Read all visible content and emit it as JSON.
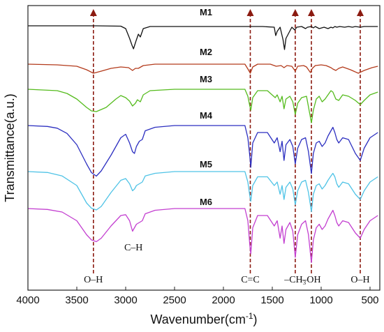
{
  "chart_data": {
    "type": "line",
    "xlabel": "Wavenumber(cm",
    "xlabel_sup": "-1",
    "xlabel_close": ")",
    "ylabel": "Transmittance(a.u.)",
    "xlim": [
      4000,
      400
    ],
    "x_direction": "reversed",
    "x_ticks": [
      4000,
      3500,
      3000,
      2500,
      2000,
      1500,
      1000,
      500
    ],
    "y_ticks": "none",
    "grid": false,
    "series": [
      {
        "name": "M1",
        "color": "#111111",
        "x": [
          4000,
          3300,
          3050,
          3000,
          2960,
          2935,
          2920,
          2895,
          2870,
          2850,
          2820,
          2750,
          2000,
          1600,
          1480,
          1465,
          1450,
          1420,
          1390,
          1375,
          1360,
          1300,
          1270,
          1250,
          1200,
          1160,
          1140,
          1100,
          1080,
          1060,
          1020,
          970,
          930,
          900,
          880,
          860,
          840,
          810,
          760,
          720,
          680,
          650,
          600,
          560,
          500,
          420
        ],
        "y": [
          0,
          0,
          -0.5,
          -4,
          -18,
          -28,
          -33,
          -22,
          -12,
          -16,
          -4,
          -1,
          -1,
          -1,
          -2,
          -14,
          -8,
          -2,
          -20,
          -34,
          -18,
          -2,
          -6,
          -2,
          -1,
          -4,
          -2,
          -1,
          -3,
          -1,
          -4,
          -2,
          -4,
          -2,
          -3,
          -1,
          -2,
          -1,
          -2,
          -1,
          -2,
          -1,
          -2,
          -1,
          -1,
          -1
        ]
      },
      {
        "name": "M2",
        "color": "#b33a1b",
        "x": [
          4000,
          3700,
          3500,
          3400,
          3330,
          3250,
          3150,
          3050,
          2970,
          2930,
          2900,
          2870,
          2820,
          2700,
          2000,
          1780,
          1745,
          1725,
          1700,
          1650,
          1520,
          1460,
          1410,
          1380,
          1350,
          1300,
          1265,
          1240,
          1180,
          1150,
          1110,
          1090,
          1060,
          1000,
          950,
          900,
          880,
          850,
          820,
          780,
          700,
          620,
          560,
          480,
          420
        ],
        "y": [
          0,
          -1,
          -3,
          -8,
          -13,
          -10,
          -6,
          -4,
          -5,
          -9,
          -6,
          -6,
          -2,
          0,
          0,
          0,
          -8,
          -13,
          -4,
          0,
          0,
          -3,
          -2,
          -5,
          -2,
          -3,
          -10,
          -3,
          -2,
          -4,
          -12,
          -6,
          -2,
          -1,
          -2,
          -5,
          -7,
          -9,
          -6,
          -4,
          -8,
          -13,
          -9,
          -5,
          -3
        ]
      },
      {
        "name": "M3",
        "color": "#55bb1d",
        "x": [
          4000,
          3700,
          3600,
          3500,
          3400,
          3350,
          3300,
          3200,
          3100,
          3050,
          3000,
          2960,
          2930,
          2900,
          2880,
          2850,
          2820,
          2750,
          2500,
          2000,
          1780,
          1750,
          1730,
          1720,
          1700,
          1650,
          1550,
          1470,
          1450,
          1420,
          1400,
          1380,
          1360,
          1320,
          1290,
          1265,
          1240,
          1200,
          1150,
          1130,
          1100,
          1080,
          1050,
          1020,
          990,
          960,
          920,
          900,
          880,
          850,
          820,
          780,
          720,
          650,
          600,
          560,
          500,
          420
        ],
        "y": [
          0,
          -2,
          -6,
          -14,
          -26,
          -31,
          -32,
          -26,
          -14,
          -9,
          -12,
          -17,
          -24,
          -20,
          -15,
          -18,
          -8,
          -2,
          0,
          0,
          0,
          -10,
          -24,
          -30,
          -12,
          -2,
          -2,
          -12,
          -8,
          -18,
          -10,
          -28,
          -14,
          -10,
          -18,
          -36,
          -20,
          -12,
          -10,
          -25,
          -48,
          -30,
          -14,
          -10,
          -18,
          -14,
          -6,
          -2,
          -4,
          -14,
          -16,
          -8,
          -10,
          -16,
          -22,
          -16,
          -8,
          -4
        ]
      },
      {
        "name": "M4",
        "color": "#2c2fc0",
        "x": [
          4000,
          3800,
          3700,
          3600,
          3500,
          3400,
          3350,
          3300,
          3250,
          3150,
          3050,
          3000,
          2960,
          2930,
          2910,
          2890,
          2860,
          2830,
          2800,
          2700,
          2500,
          2000,
          1780,
          1750,
          1730,
          1720,
          1700,
          1650,
          1550,
          1480,
          1450,
          1420,
          1400,
          1380,
          1360,
          1320,
          1290,
          1265,
          1240,
          1200,
          1160,
          1130,
          1100,
          1080,
          1050,
          1020,
          990,
          960,
          930,
          900,
          880,
          860,
          840,
          820,
          780,
          720,
          650,
          600,
          560,
          500,
          420
        ],
        "y": [
          0,
          -1,
          -3,
          -9,
          -22,
          -44,
          -54,
          -58,
          -52,
          -34,
          -14,
          -10,
          -20,
          -30,
          -32,
          -24,
          -18,
          -16,
          -6,
          -2,
          0,
          0,
          0,
          -14,
          -35,
          -48,
          -20,
          -8,
          -8,
          -20,
          -14,
          -30,
          -18,
          -40,
          -22,
          -16,
          -24,
          -44,
          -26,
          -16,
          -14,
          -30,
          -55,
          -32,
          -20,
          -18,
          -24,
          -20,
          -12,
          -6,
          -2,
          -8,
          -16,
          -20,
          -14,
          -16,
          -32,
          -40,
          -26,
          -14,
          -8
        ]
      },
      {
        "name": "M5",
        "color": "#4fc3e6",
        "x": [
          4000,
          3800,
          3650,
          3500,
          3400,
          3350,
          3300,
          3250,
          3150,
          3050,
          3000,
          2960,
          2930,
          2910,
          2890,
          2860,
          2830,
          2800,
          2700,
          2500,
          2000,
          1780,
          1750,
          1730,
          1720,
          1700,
          1650,
          1550,
          1480,
          1450,
          1420,
          1400,
          1380,
          1360,
          1320,
          1290,
          1265,
          1240,
          1200,
          1160,
          1130,
          1100,
          1080,
          1050,
          1020,
          990,
          960,
          930,
          900,
          880,
          860,
          840,
          820,
          780,
          720,
          650,
          600,
          560,
          500,
          420
        ],
        "y": [
          0,
          -1,
          -5,
          -16,
          -36,
          -42,
          -44,
          -40,
          -24,
          -10,
          -8,
          -14,
          -22,
          -20,
          -16,
          -14,
          -12,
          -5,
          -2,
          0,
          0,
          0,
          -12,
          -28,
          -34,
          -16,
          -6,
          -6,
          -16,
          -12,
          -26,
          -16,
          -32,
          -18,
          -12,
          -20,
          -38,
          -22,
          -12,
          -10,
          -24,
          -46,
          -26,
          -16,
          -14,
          -20,
          -16,
          -10,
          -5,
          -2,
          -6,
          -14,
          -18,
          -12,
          -14,
          -26,
          -32,
          -22,
          -12,
          -6
        ]
      },
      {
        "name": "M6",
        "color": "#c33fd0",
        "x": [
          4000,
          3800,
          3650,
          3500,
          3400,
          3350,
          3300,
          3250,
          3150,
          3050,
          3000,
          2960,
          2930,
          2910,
          2890,
          2860,
          2830,
          2800,
          2700,
          2500,
          2000,
          1780,
          1750,
          1730,
          1720,
          1700,
          1650,
          1550,
          1480,
          1450,
          1420,
          1400,
          1380,
          1360,
          1320,
          1290,
          1265,
          1240,
          1200,
          1160,
          1130,
          1100,
          1080,
          1050,
          1020,
          990,
          960,
          930,
          900,
          880,
          860,
          840,
          820,
          780,
          720,
          650,
          600,
          560,
          500,
          420
        ],
        "y": [
          0,
          -1,
          -4,
          -14,
          -30,
          -36,
          -38,
          -34,
          -20,
          -8,
          -7,
          -14,
          -26,
          -22,
          -18,
          -16,
          -14,
          -6,
          -2,
          0,
          0,
          0,
          -14,
          -42,
          -52,
          -22,
          -8,
          -8,
          -20,
          -14,
          -34,
          -20,
          -40,
          -24,
          -16,
          -26,
          -56,
          -30,
          -18,
          -14,
          -30,
          -62,
          -36,
          -22,
          -18,
          -24,
          -20,
          -12,
          -6,
          -2,
          -8,
          -16,
          -20,
          -14,
          -16,
          -28,
          -34,
          -24,
          -14,
          -8
        ]
      }
    ],
    "reference_lines": [
      {
        "x": 3330,
        "label": "O–H"
      },
      {
        "x": 1725,
        "label": "C=C"
      },
      {
        "x": 1265,
        "label": "–CH₃"
      },
      {
        "x": 1100,
        "label": "–OH"
      },
      {
        "x": 600,
        "label": "O–H"
      }
    ],
    "annotations": [
      {
        "x": 2920,
        "label": "C–H"
      }
    ],
    "reference_line_color": "#8b1a10"
  }
}
